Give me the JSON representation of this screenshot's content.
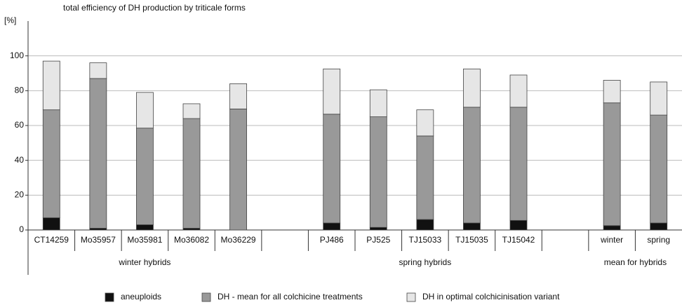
{
  "chart_data": {
    "type": "stacked_bar",
    "title": "total  efficiency of DH production by triticale forms",
    "y_label": "[%]",
    "categories": [
      "CT14259",
      "Mo35957",
      "Mo35981",
      "Mo36082",
      "Mo36229",
      null,
      "PJ486",
      "PJ525",
      "TJ15033",
      "TJ15035",
      "TJ15042",
      null,
      "winter",
      "spring"
    ],
    "groups": [
      "winter hybrids",
      "spring hybrids",
      "mean for hybrids"
    ],
    "series": [
      {
        "name": "aneuploids",
        "color": "#111111",
        "values": [
          7,
          1,
          3,
          1,
          0,
          null,
          4,
          1.5,
          6,
          4,
          5.5,
          null,
          2.5,
          4
        ]
      },
      {
        "name": "DH - mean for all colchicine treatments",
        "color": "#999999",
        "values": [
          62,
          86,
          55.5,
          63,
          69.5,
          null,
          62.5,
          63.5,
          48,
          66.5,
          65,
          null,
          70.5,
          62
        ]
      },
      {
        "name": "DH in optimal colchicinisation variant",
        "color": "#e6e6e6",
        "values": [
          28,
          9,
          20.5,
          8.5,
          14.5,
          null,
          26,
          15.5,
          15,
          22,
          18.5,
          null,
          13,
          19
        ]
      }
    ],
    "ylim": [
      0,
      120
    ],
    "yticks": [
      0,
      20,
      40,
      60,
      80,
      100
    ],
    "grid": true
  }
}
